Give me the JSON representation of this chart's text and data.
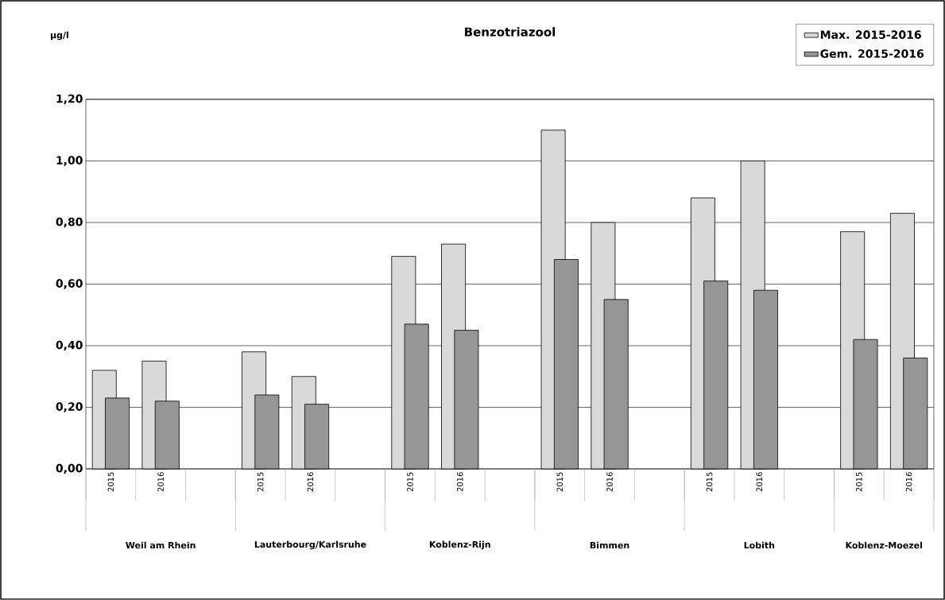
{
  "chart_data": {
    "type": "bar",
    "title": "Benzotriazool",
    "categories": [
      "2015",
      "2016",
      null,
      "2015",
      "2016",
      null,
      "2015",
      "2016",
      null,
      "2015",
      "2016",
      null,
      "2015",
      "2016",
      null,
      "2015",
      "2016"
    ],
    "series": [
      {
        "name": "Max. 2015-2016",
        "color": "#d9d9d9",
        "values": [
          0.32,
          0.35,
          null,
          0.38,
          0.3,
          null,
          0.69,
          0.73,
          null,
          1.1,
          0.8,
          null,
          0.88,
          1.0,
          null,
          0.77,
          0.83
        ]
      },
      {
        "name": "Gem. 2015-2016",
        "color": "#969696",
        "values": [
          0.23,
          0.22,
          null,
          0.24,
          0.21,
          null,
          0.47,
          0.45,
          null,
          0.68,
          0.55,
          null,
          0.61,
          0.58,
          null,
          0.42,
          0.36
        ]
      }
    ],
    "annotations": [
      "µg/l",
      "Weil am Rhein",
      "Lauterbourg/Karlsruhe",
      "Koblenz-Rijn",
      "Bimmen",
      "Lobith",
      "Koblenz-Moezel"
    ],
    "ylim": [
      0,
      1.2
    ],
    "yticks": [
      {
        "value": 0,
        "label": "0,00"
      },
      {
        "value": 0.2,
        "label": "0,20"
      },
      {
        "value": 0.4,
        "label": "0,40"
      },
      {
        "value": 0.6,
        "label": "0,60"
      },
      {
        "value": 0.8,
        "label": "0,80"
      },
      {
        "value": 1.0,
        "label": "1,00"
      },
      {
        "value": 1.2,
        "label": "1,20"
      }
    ],
    "grid": "y",
    "legend": "top right"
  }
}
